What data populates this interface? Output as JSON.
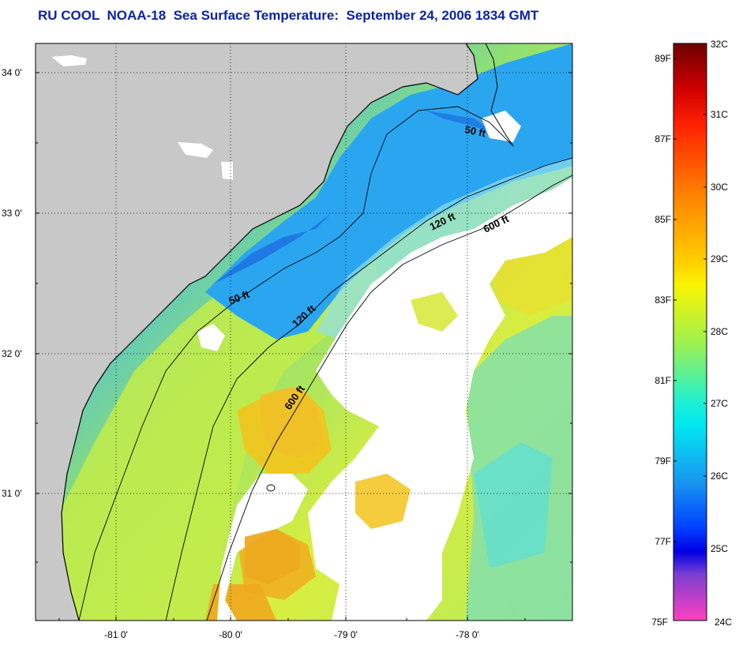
{
  "title": "RU COOL  NOAA-18  Sea Surface Temperature:  September 24, 2006 1834 GMT",
  "map": {
    "lat_labels": [
      "34 0'",
      "33 0'",
      "32 0'",
      "31 0'"
    ],
    "lon_labels": [
      "-81 0'",
      "-80 0'",
      "-79 0'",
      "-78 0'"
    ],
    "depth_contours": [
      {
        "id": "c50-a",
        "label": "50 ft"
      },
      {
        "id": "c50-b",
        "label": "50 ft"
      },
      {
        "id": "c120-a",
        "label": "120 ft"
      },
      {
        "id": "c120-b",
        "label": "120 ft"
      },
      {
        "id": "c600-a",
        "label": "600 ft"
      },
      {
        "id": "c600-b",
        "label": "600 ft"
      }
    ]
  },
  "colorbar": {
    "celsius_labels": [
      "32C",
      "31C",
      "30C",
      "29C",
      "28C",
      "27C",
      "26C",
      "25C",
      "24C"
    ],
    "fahrenheit_labels": [
      "89F",
      "87F",
      "85F",
      "83F",
      "81F",
      "79F",
      "77F",
      "75F"
    ],
    "colors": [
      "#7a0000",
      "#ff0000",
      "#ff7a00",
      "#ffd000",
      "#f5f500",
      "#b5f04a",
      "#3fe6a0",
      "#00f0f0",
      "#1aa0f0",
      "#0040ff",
      "#0000ee",
      "#7a3fd0",
      "#d040d0",
      "#ff40c0"
    ]
  },
  "legend_colors": {
    "land": "#c8c8c8",
    "cloud": "#ffffff",
    "title": "#0b23a6"
  }
}
